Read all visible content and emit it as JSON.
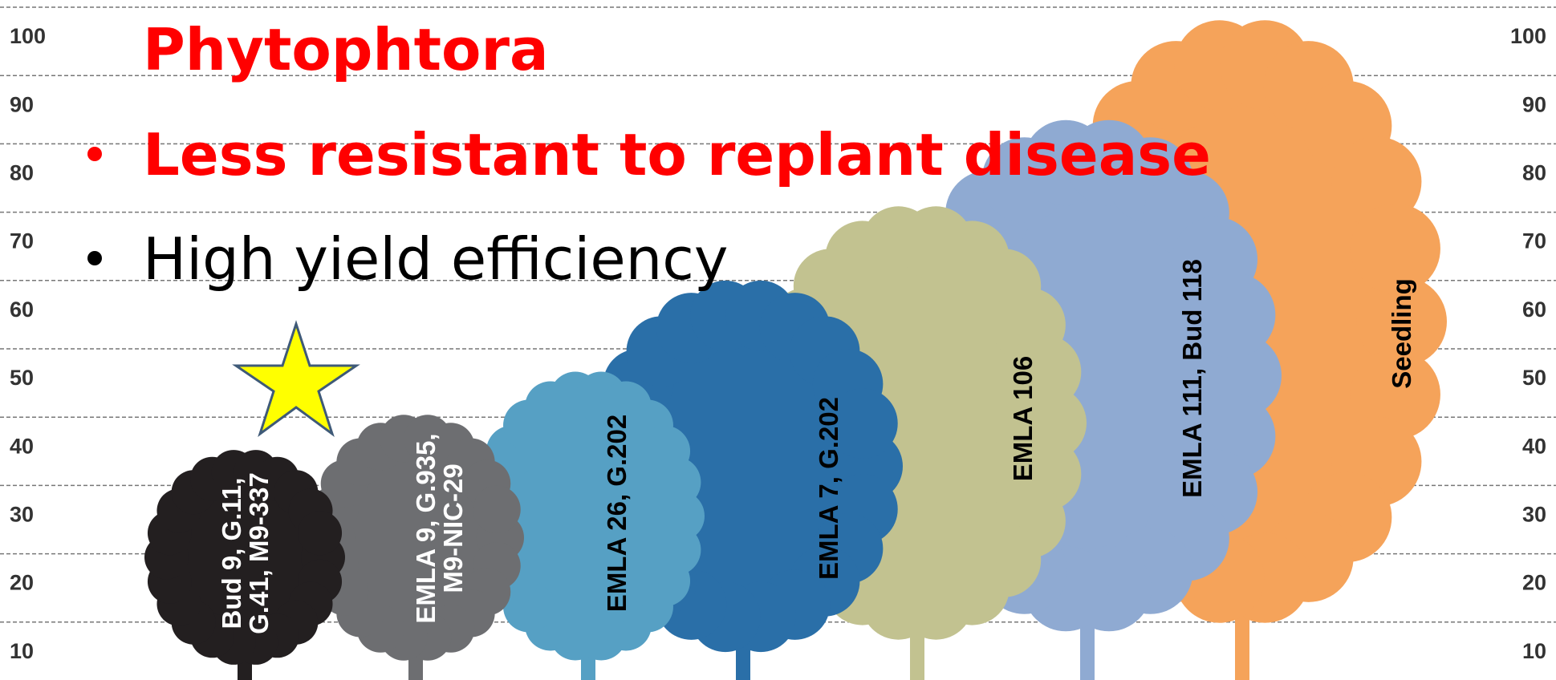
{
  "axis": {
    "ticks": [
      100,
      90,
      80,
      70,
      60,
      50,
      40,
      30,
      20,
      10
    ]
  },
  "title": "Phytophtora",
  "bullets": [
    {
      "text": "Less resistant to replant disease",
      "color": "#ff0000",
      "bold": true
    },
    {
      "text": "High yield efficiency",
      "color": "#000000",
      "bold": false
    }
  ],
  "trees": [
    {
      "label": [
        "Seedling"
      ],
      "color": "#f5a35a",
      "text_color": "#000000"
    },
    {
      "label": [
        "EMLA 111, Bud 118"
      ],
      "color": "#8faad2",
      "text_color": "#000000"
    },
    {
      "label": [
        "EMLA 106"
      ],
      "color": "#c2c290",
      "text_color": "#000000"
    },
    {
      "label": [
        "EMLA 7, G.202"
      ],
      "color": "#2a6fa8",
      "text_color": "#000000"
    },
    {
      "label": [
        "EMLA 26, G.202"
      ],
      "color": "#56a0c4",
      "text_color": "#000000"
    },
    {
      "label": [
        "EMLA 9, G.935,",
        "M9-NIC-29"
      ],
      "color": "#6d6e71",
      "text_color": "#ffffff"
    },
    {
      "label": [
        "Bud 9, G.11,",
        "G.41, M9-337"
      ],
      "color": "#231f20",
      "text_color": "#ffffff"
    }
  ]
}
